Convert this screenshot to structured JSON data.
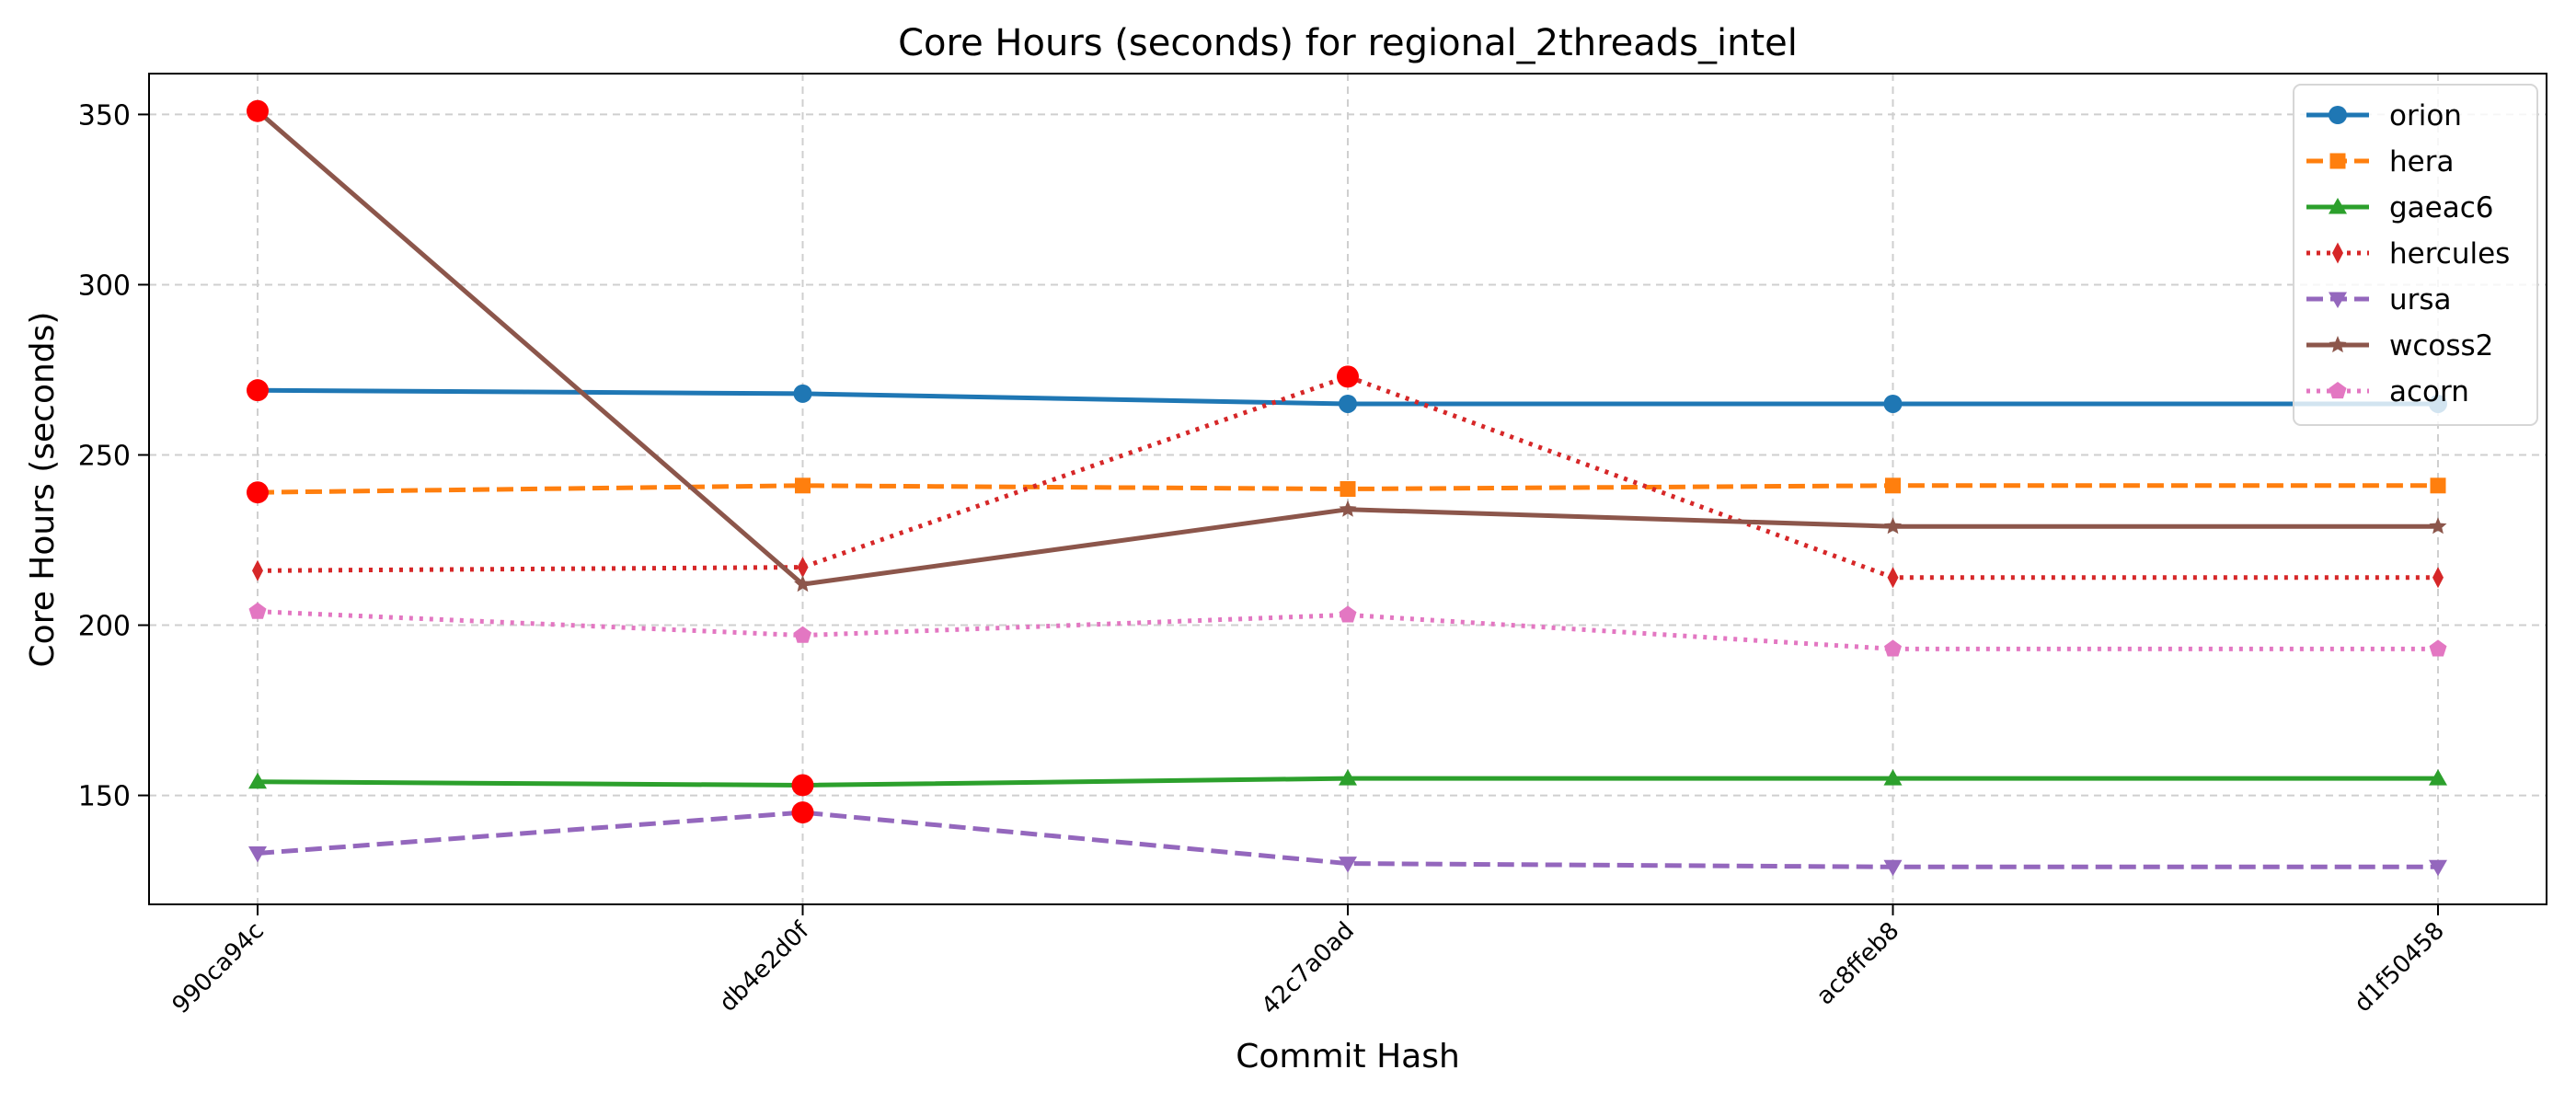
{
  "chart_data": {
    "type": "line",
    "title": "Core Hours (seconds) for regional_2threads_intel",
    "xlabel": "Commit Hash",
    "ylabel": "Core Hours (seconds)",
    "categories": [
      "990ca94c",
      "db4e2d0f",
      "42c7a0ad",
      "ac8ffeb8",
      "d1f50458"
    ],
    "ylim": [
      118,
      362
    ],
    "yticks": [
      150,
      200,
      250,
      300,
      350
    ],
    "grid": true,
    "legend_position": "top-right",
    "series": [
      {
        "name": "orion",
        "values": [
          269,
          268,
          265,
          265,
          265
        ],
        "color": "#1f77b4",
        "marker": "circle",
        "linestyle": "solid"
      },
      {
        "name": "hera",
        "values": [
          239,
          241,
          240,
          241,
          241
        ],
        "color": "#ff7f0e",
        "marker": "square",
        "linestyle": "dashed"
      },
      {
        "name": "gaeac6",
        "values": [
          154,
          153,
          155,
          155,
          155
        ],
        "color": "#2ca02c",
        "marker": "triangle-up",
        "linestyle": "solid"
      },
      {
        "name": "hercules",
        "values": [
          216,
          217,
          273,
          214,
          214
        ],
        "color": "#d62728",
        "marker": "thin-diamond",
        "linestyle": "dotted"
      },
      {
        "name": "ursa",
        "values": [
          133,
          145,
          130,
          129,
          129
        ],
        "color": "#9467bd",
        "marker": "triangle-down",
        "linestyle": "dashed"
      },
      {
        "name": "wcoss2",
        "values": [
          351,
          212,
          234,
          229,
          229
        ],
        "color": "#8c564b",
        "marker": "star",
        "linestyle": "solid"
      },
      {
        "name": "acorn",
        "values": [
          204,
          197,
          203,
          193,
          193
        ],
        "color": "#e377c2",
        "marker": "pentagon",
        "linestyle": "dotted"
      }
    ],
    "highlights": [
      {
        "series": "orion",
        "category": "990ca94c",
        "value": 269
      },
      {
        "series": "hera",
        "category": "990ca94c",
        "value": 239
      },
      {
        "series": "wcoss2",
        "category": "990ca94c",
        "value": 351
      },
      {
        "series": "gaeac6",
        "category": "db4e2d0f",
        "value": 153
      },
      {
        "series": "ursa",
        "category": "db4e2d0f",
        "value": 145
      },
      {
        "series": "hercules",
        "category": "42c7a0ad",
        "value": 273
      }
    ],
    "highlight_color": "#ff0000"
  }
}
